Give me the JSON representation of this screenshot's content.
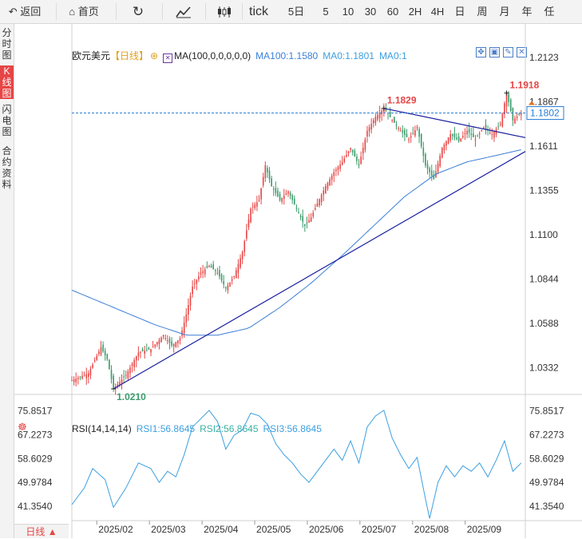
{
  "toolbar": {
    "back_label": "返回",
    "home_label": "首页",
    "tick_label": "tick",
    "periods": [
      "5日",
      "5",
      "10",
      "30",
      "60",
      "2H",
      "4H",
      "日",
      "周",
      "月",
      "年",
      "任"
    ]
  },
  "sidebar": {
    "items": [
      {
        "label": "分时图",
        "active": false
      },
      {
        "label": "K线图",
        "active": true
      },
      {
        "label": "闪电图",
        "active": false
      },
      {
        "label": "合约资料",
        "active": false
      }
    ]
  },
  "main_legend": {
    "name": "欧元美元",
    "period": "【日线】",
    "ma_label": "MA(100,0,0,0,0,0)",
    "ma100": "MA100:1.1580",
    "ma0a": "MA0:1.1801",
    "ma0b": "MA0:1"
  },
  "rsi_legend": {
    "name": "RSI(14,14,14)",
    "rsi1": "RSI1:56.8645",
    "rsi2": "RSI2:56.8645",
    "rsi3": "RSI3:56.8645"
  },
  "period_badge": "日线 ▲",
  "colors": {
    "up": "#e64545",
    "down": "#3a9b6a",
    "ma": "#3b7fd6",
    "trendline": "#1a1fa0",
    "rsi": "#3b9fe0",
    "price_label": "#2a7fd6",
    "high_label": "#e64545",
    "low_label": "#3a9b6a"
  },
  "chart_data": [
    {
      "type": "candlestick",
      "title": "欧元美元",
      "y_ticks": [
        "1.2123",
        "1.1867",
        "1.1611",
        "1.1355",
        "1.1100",
        "1.0844",
        "1.0588",
        "1.0332"
      ],
      "ylim": [
        1.0187,
        1.2233
      ],
      "x_ticks": [
        "2025/02",
        "2025/03",
        "2025/04",
        "2025/05",
        "2025/06",
        "2025/07",
        "2025/08",
        "2025/09"
      ],
      "current_price": "1.1802",
      "current_price_value": 1.1802,
      "high_label": "1.1829",
      "high_value": 1.1829,
      "peak_label": "1.1918",
      "peak_value": 1.1918,
      "low_label": "1.0210",
      "low_value": 1.021,
      "price_path": [
        [
          0,
          1.026
        ],
        [
          8,
          1.03
        ],
        [
          14,
          1.045
        ],
        [
          17,
          1.038
        ],
        [
          20,
          1.021
        ],
        [
          26,
          1.029
        ],
        [
          32,
          1.042
        ],
        [
          38,
          1.044
        ],
        [
          44,
          1.052
        ],
        [
          48,
          1.046
        ],
        [
          52,
          1.05
        ],
        [
          55,
          1.064
        ],
        [
          58,
          1.08
        ],
        [
          62,
          1.088
        ],
        [
          66,
          1.092
        ],
        [
          70,
          1.088
        ],
        [
          74,
          1.079
        ],
        [
          78,
          1.086
        ],
        [
          82,
          1.1
        ],
        [
          86,
          1.125
        ],
        [
          90,
          1.13
        ],
        [
          93,
          1.15
        ],
        [
          96,
          1.138
        ],
        [
          100,
          1.13
        ],
        [
          104,
          1.135
        ],
        [
          108,
          1.125
        ],
        [
          112,
          1.115
        ],
        [
          115,
          1.12
        ],
        [
          118,
          1.128
        ],
        [
          122,
          1.138
        ],
        [
          126,
          1.146
        ],
        [
          130,
          1.152
        ],
        [
          134,
          1.16
        ],
        [
          138,
          1.15
        ],
        [
          142,
          1.17
        ],
        [
          146,
          1.178
        ],
        [
          150,
          1.1829
        ],
        [
          154,
          1.176
        ],
        [
          158,
          1.17
        ],
        [
          162,
          1.165
        ],
        [
          166,
          1.172
        ],
        [
          170,
          1.15
        ],
        [
          174,
          1.142
        ],
        [
          178,
          1.16
        ],
        [
          182,
          1.168
        ],
        [
          186,
          1.164
        ],
        [
          190,
          1.17
        ],
        [
          194,
          1.165
        ],
        [
          198,
          1.172
        ],
        [
          202,
          1.168
        ],
        [
          206,
          1.174
        ],
        [
          209,
          1.1918
        ],
        [
          212,
          1.176
        ],
        [
          216,
          1.1802
        ]
      ],
      "ma100_path": [
        [
          0,
          1.078
        ],
        [
          20,
          1.068
        ],
        [
          40,
          1.058
        ],
        [
          55,
          1.052
        ],
        [
          70,
          1.052
        ],
        [
          85,
          1.056
        ],
        [
          100,
          1.068
        ],
        [
          115,
          1.082
        ],
        [
          130,
          1.098
        ],
        [
          145,
          1.115
        ],
        [
          160,
          1.132
        ],
        [
          175,
          1.145
        ],
        [
          190,
          1.152
        ],
        [
          205,
          1.156
        ],
        [
          216,
          1.159
        ]
      ],
      "trendlines": [
        {
          "from": [
            20,
            1.021
          ],
          "to": [
            218,
            1.158
          ]
        },
        {
          "from": [
            150,
            1.1829
          ],
          "to": [
            218,
            1.166
          ]
        }
      ]
    },
    {
      "type": "line",
      "title": "RSI(14,14,14)",
      "y_ticks": [
        "75.8517",
        "67.2273",
        "58.6029",
        "49.9784",
        "41.3540"
      ],
      "ylim": [
        36.2,
        80.0
      ],
      "series": [
        {
          "name": "RSI1",
          "points": [
            [
              0,
              42
            ],
            [
              6,
              48
            ],
            [
              10,
              55
            ],
            [
              16,
              51
            ],
            [
              20,
              41
            ],
            [
              26,
              48
            ],
            [
              32,
              57
            ],
            [
              38,
              55
            ],
            [
              42,
              50
            ],
            [
              46,
              54
            ],
            [
              50,
              52
            ],
            [
              54,
              60
            ],
            [
              58,
              70
            ],
            [
              62,
              73
            ],
            [
              66,
              76
            ],
            [
              70,
              72
            ],
            [
              74,
              62
            ],
            [
              78,
              67
            ],
            [
              82,
              69
            ],
            [
              86,
              75
            ],
            [
              90,
              74
            ],
            [
              94,
              71
            ],
            [
              98,
              64
            ],
            [
              102,
              60
            ],
            [
              106,
              57
            ],
            [
              110,
              53
            ],
            [
              114,
              50
            ],
            [
              118,
              54
            ],
            [
              122,
              58
            ],
            [
              126,
              62
            ],
            [
              130,
              58
            ],
            [
              134,
              65
            ],
            [
              138,
              57
            ],
            [
              142,
              70
            ],
            [
              146,
              74
            ],
            [
              150,
              76
            ],
            [
              154,
              66
            ],
            [
              158,
              60
            ],
            [
              162,
              55
            ],
            [
              166,
              59
            ],
            [
              170,
              44
            ],
            [
              172,
              37
            ],
            [
              176,
              50
            ],
            [
              180,
              56
            ],
            [
              184,
              52
            ],
            [
              188,
              56
            ],
            [
              192,
              54
            ],
            [
              196,
              57
            ],
            [
              200,
              52
            ],
            [
              204,
              58
            ],
            [
              208,
              65
            ],
            [
              212,
              54
            ],
            [
              216,
              57
            ]
          ]
        }
      ]
    }
  ]
}
